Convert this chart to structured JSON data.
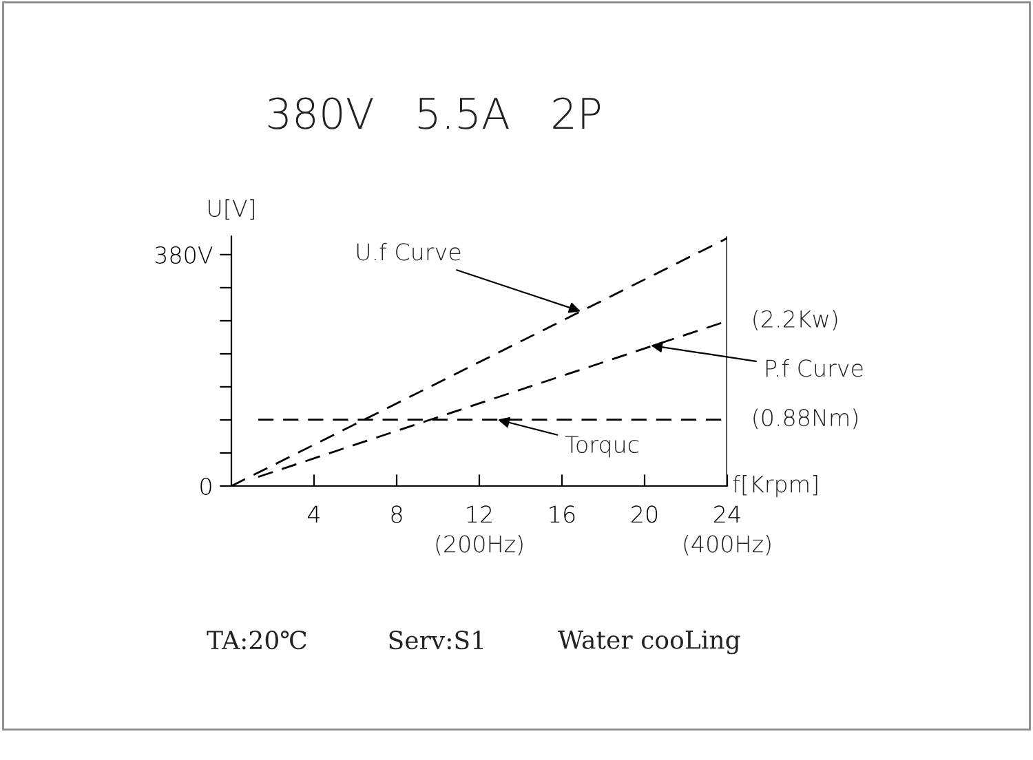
{
  "chart_data": {
    "type": "line",
    "title": "380V   5.5A   2P",
    "xlabel": "f[Krpm]",
    "ylabel": "U[V]",
    "xlim": [
      0,
      24
    ],
    "ylim": [
      0,
      410
    ],
    "xticks": [
      4,
      8,
      12,
      16,
      20,
      24
    ],
    "yticks": [
      {
        "value": 0,
        "label": "0"
      },
      {
        "value": 54.3,
        "label": null
      },
      {
        "value": 108.6,
        "label": null
      },
      {
        "value": 162.9,
        "label": null
      },
      {
        "value": 217.1,
        "label": null
      },
      {
        "value": 271.4,
        "label": null
      },
      {
        "value": 325.7,
        "label": null
      },
      {
        "value": 380,
        "label": "380V"
      }
    ],
    "line_style": "dashed",
    "marker": "none",
    "grid": false,
    "legend": false,
    "series": [
      {
        "color": "#000000",
        "x": [
          0,
          24
        ],
        "values": [
          0,
          407
        ]
      },
      {
        "color": "#000000",
        "x": [
          1.3,
          24
        ],
        "values": [
          15,
          271
        ]
      },
      {
        "color": "#000000",
        "x": [
          1.3,
          24
        ],
        "values": [
          109,
          109
        ]
      }
    ],
    "ref_lines": [
      {
        "axis": "x",
        "value": 24,
        "color": "#000000",
        "line_style": "solid"
      }
    ],
    "annotations": [
      {
        "text": "U.f Curve",
        "x": 16.9,
        "y": 287
      },
      {
        "text": "P.f Curve",
        "x": 20.3,
        "y": 231
      },
      {
        "text": "Torquc",
        "x": 12.9,
        "y": 109
      },
      {
        "text": "(2.2Kw)",
        "x": 24,
        "y": 271
      },
      {
        "text": "(0.88Nm)",
        "x": 24,
        "y": 109
      },
      "(200Hz)",
      "(400Hz)",
      "TA:20℃",
      "Serv:S1",
      "Water cooLing"
    ]
  }
}
